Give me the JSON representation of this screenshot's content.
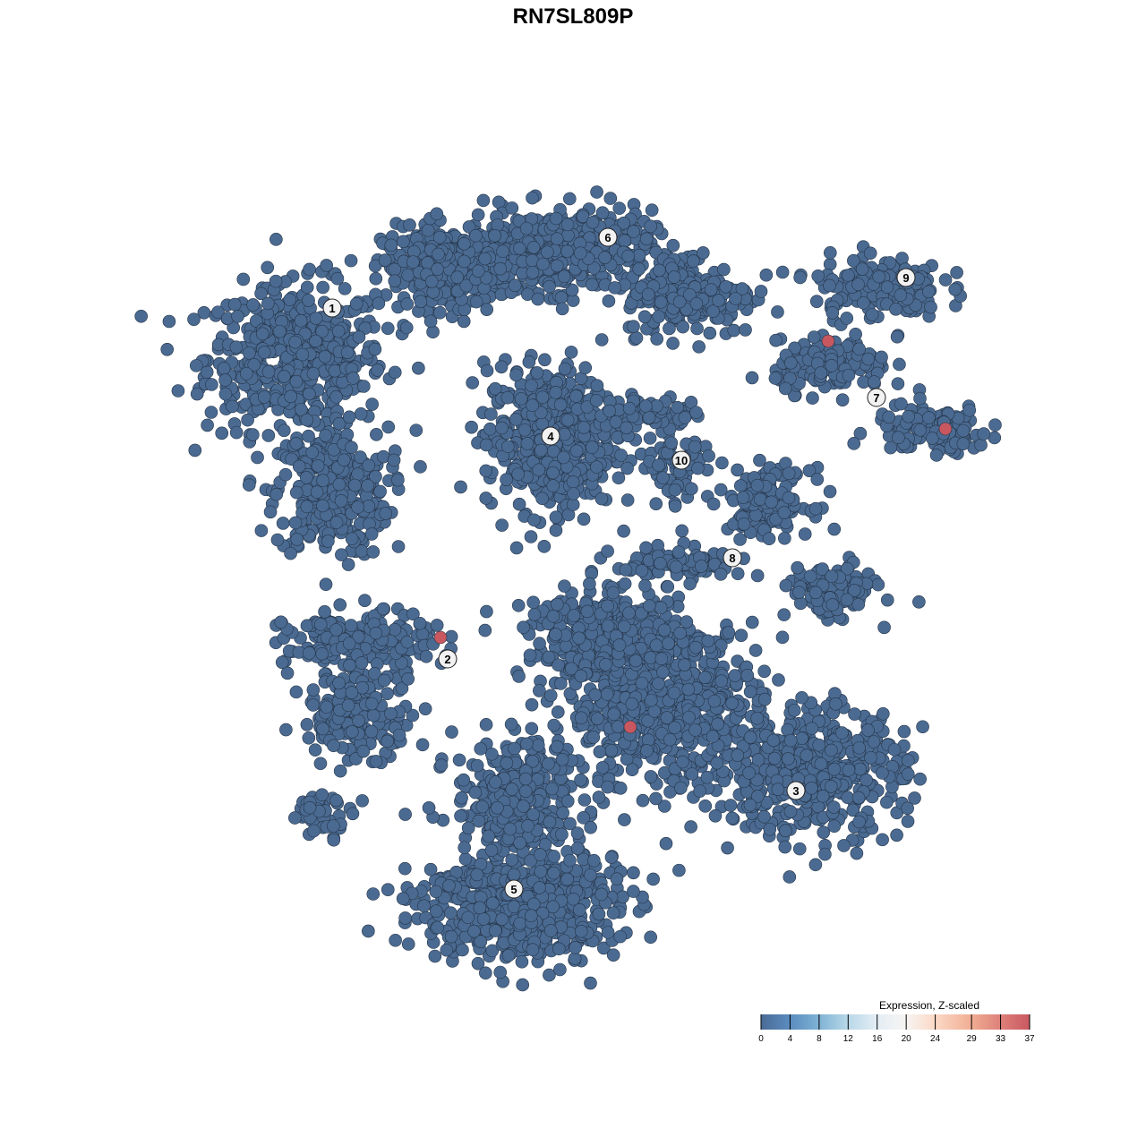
{
  "chart_data": {
    "type": "scatter",
    "title": "RN7SL809P",
    "xlabel": "",
    "ylabel": "",
    "xlim": [
      -64,
      64
    ],
    "ylim": [
      -64,
      64
    ],
    "grid": false,
    "axes_visible": false,
    "point_colors": {
      "low": "#4a6a91",
      "high": "#c8575f",
      "outline": "#263549"
    },
    "clusters": [
      {
        "label": "1",
        "label_pos": [
          -26.9,
          29.6
        ],
        "blobs": [
          {
            "center": [
              -31,
              24
            ],
            "spread": [
              11,
              9
            ],
            "n": 520
          },
          {
            "center": [
              -27,
              9
            ],
            "spread": [
              7,
              8
            ],
            "n": 300
          },
          {
            "center": [
              -14,
              34
            ],
            "spread": [
              8,
              5
            ],
            "n": 320
          }
        ]
      },
      {
        "label": "6",
        "label_pos": [
          3.9,
          37.5
        ],
        "blobs": [
          {
            "center": [
              -2,
              36
            ],
            "spread": [
              12,
              5
            ],
            "n": 520
          },
          {
            "center": [
              13,
              31
            ],
            "spread": [
              8,
              5
            ],
            "n": 220
          }
        ]
      },
      {
        "label": "4",
        "label_pos": [
          -2.5,
          15.3
        ],
        "blobs": [
          {
            "center": [
              -2.5,
              15
            ],
            "spread": [
              8,
              9
            ],
            "n": 520
          }
        ]
      },
      {
        "label": "10",
        "label_pos": [
          12.1,
          12.6
        ],
        "blobs": [
          {
            "center": [
              12,
              13
            ],
            "spread": [
              4,
              6
            ],
            "n": 80
          },
          {
            "center": [
              8,
              18
            ],
            "spread": [
              6,
              2
            ],
            "n": 60
          }
        ]
      },
      {
        "label": "9",
        "label_pos": [
          37.2,
          33
        ],
        "blobs": [
          {
            "center": [
              34,
              32
            ],
            "spread": [
              8,
              4
            ],
            "n": 160
          }
        ]
      },
      {
        "label": "7",
        "label_pos": [
          33.9,
          19.6
        ],
        "blobs": [
          {
            "center": [
              29,
              23
            ],
            "spread": [
              7,
              3
            ],
            "n": 160
          },
          {
            "center": [
              40,
              16
            ],
            "spread": [
              7,
              3
            ],
            "n": 130
          }
        ]
      },
      {
        "label": "8",
        "label_pos": [
          17.8,
          1.7
        ],
        "blobs": [
          {
            "center": [
              22,
              8
            ],
            "spread": [
              5,
              4
            ],
            "n": 150
          },
          {
            "center": [
              29,
              -2
            ],
            "spread": [
              5,
              3
            ],
            "n": 160
          },
          {
            "center": [
              12,
              1
            ],
            "spread": [
              8,
              2
            ],
            "n": 100
          }
        ]
      },
      {
        "label": "2",
        "label_pos": [
          -14,
          -9.6
        ],
        "blobs": [
          {
            "center": [
              -24,
              -8
            ],
            "spread": [
              9,
              4
            ],
            "n": 200
          },
          {
            "center": [
              -24,
              -16
            ],
            "spread": [
              7,
              5
            ],
            "n": 160
          },
          {
            "center": [
              -28,
              -27
            ],
            "spread": [
              4,
              2.5
            ],
            "n": 40
          }
        ]
      },
      {
        "label": "3",
        "label_pos": [
          24.9,
          -24.3
        ],
        "blobs": [
          {
            "center": [
              26,
              -22
            ],
            "spread": [
              12,
              8
            ],
            "n": 520
          },
          {
            "center": [
              10,
              -15
            ],
            "spread": [
              12,
              10
            ],
            "n": 620
          },
          {
            "center": [
              4,
              -7
            ],
            "spread": [
              10,
              5
            ],
            "n": 320
          }
        ]
      },
      {
        "label": "5",
        "label_pos": [
          -6.6,
          -35.3
        ],
        "blobs": [
          {
            "center": [
              -6,
              -37
            ],
            "spread": [
              12,
              7
            ],
            "n": 620
          },
          {
            "center": [
              -6,
              -25
            ],
            "spread": [
              8,
              7
            ],
            "n": 300
          }
        ]
      }
    ],
    "high_expression_points": [
      [
        28.5,
        25.9
      ],
      [
        41.6,
        16.1
      ],
      [
        -14.8,
        -7.2
      ],
      [
        6.4,
        -17.2
      ]
    ],
    "legend": {
      "title": "Expression, Z-scaled",
      "position": "bottom-right",
      "ticks": [
        "0",
        "4",
        "8",
        "12",
        "16",
        "20",
        "24",
        "29",
        "33",
        "37"
      ],
      "tick_values": [
        0,
        4,
        8,
        12,
        16,
        20,
        24,
        29,
        33,
        37
      ],
      "range": [
        0,
        37
      ],
      "colors": [
        "#4a6b96",
        "#5b8cbf",
        "#7fb3d5",
        "#b9d8e8",
        "#e4eef5",
        "#f7f4f2",
        "#fbd9c6",
        "#f1ad93",
        "#dd8079",
        "#c95862"
      ]
    }
  }
}
